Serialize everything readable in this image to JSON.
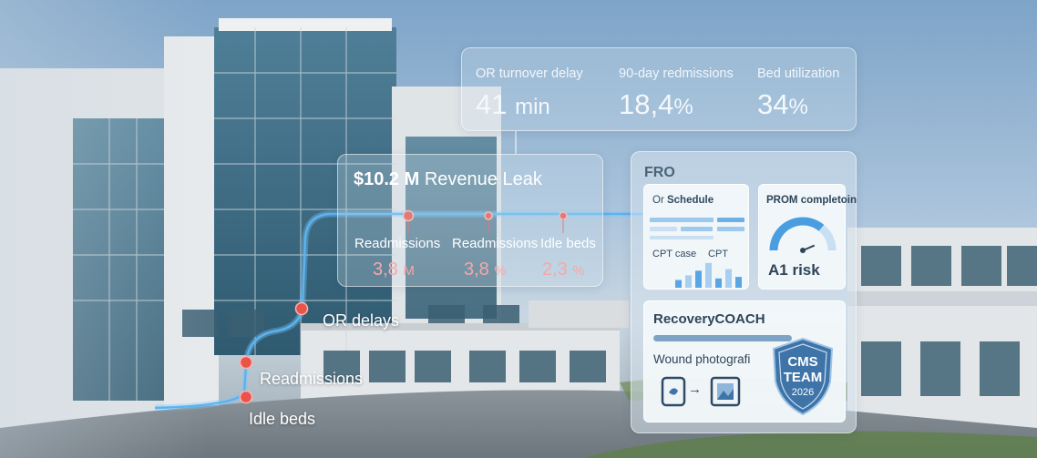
{
  "kpis": [
    {
      "label": "OR turnover delay",
      "value": "41",
      "unit": "min"
    },
    {
      "label": "90-day redmissions",
      "value": "18,4",
      "unit": "%"
    },
    {
      "label": "Bed utilization",
      "value": "34",
      "unit": "%"
    }
  ],
  "leak": {
    "amount": "$10.2 M",
    "title": "Revenue Leak",
    "columns": [
      {
        "label": "Readmissions",
        "value": "3,8",
        "unit": "M"
      },
      {
        "label": "Readmissions",
        "value": "3,8",
        "unit": "%"
      },
      {
        "label": "Idle beds",
        "value": "2,3",
        "unit": "%"
      }
    ]
  },
  "flow": {
    "labels": [
      "OR delays",
      "Readmissions",
      "Idle beds"
    ]
  },
  "fro": {
    "title": "FRO",
    "or_card": {
      "title_prefix": "Or",
      "title_bold": "Schedule",
      "cpt_case": "CPT case",
      "cpt": "CPT",
      "bars": [
        0.25,
        0.4,
        0.55,
        0.8,
        0.3,
        0.6,
        0.35
      ]
    },
    "prom_card": {
      "title": "PROM completoin",
      "gauge_value": 0.72,
      "risk_label": "A1 risk"
    },
    "recovery": {
      "title": "RecoveryCOACH",
      "wound_label": "Wound photografi",
      "arrow": "→"
    },
    "badge": {
      "line1": "CMS",
      "line2": "TEAM",
      "year": "2026"
    }
  },
  "colors": {
    "accent_blue": "#4aa8e8",
    "alert_red": "#e8534a",
    "badge_blue": "#3f74a8"
  },
  "icons": [
    "phone-icon",
    "arrow-right-icon",
    "image-icon",
    "gauge-icon",
    "shield-badge-icon"
  ]
}
